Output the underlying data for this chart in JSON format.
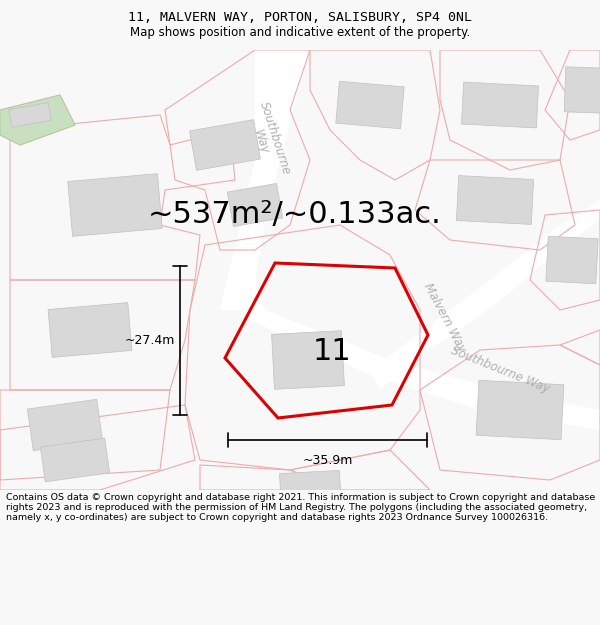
{
  "title": "11, MALVERN WAY, PORTON, SALISBURY, SP4 0NL",
  "subtitle": "Map shows position and indicative extent of the property.",
  "area_text": "~537m²/~0.133ac.",
  "number_label": "11",
  "dim_width": "~35.9m",
  "dim_height": "~27.4m",
  "footer": "Contains OS data © Crown copyright and database right 2021. This information is subject to Crown copyright and database rights 2023 and is reproduced with the permission of HM Land Registry. The polygons (including the associated geometry, namely x, y co-ordinates) are subject to Crown copyright and database rights 2023 Ordnance Survey 100026316.",
  "bg_color": "#f8f8f8",
  "map_bg": "#f2f1f0",
  "parcel_line_color": "#f0aaaa",
  "building_color": "#d8d8d8",
  "building_stroke": "#c0c0c0",
  "green_color": "#c8dfc0",
  "green_stroke": "#a8c8a0",
  "road_bg_color": "#ffffff",
  "red_poly_color": "#dd0000",
  "title_fontsize": 9.5,
  "subtitle_fontsize": 8.5,
  "footer_fontsize": 6.8,
  "area_fontsize": 22,
  "number_fontsize": 22,
  "label_color": "#b0b0b0",
  "label_fontsize": 8.5
}
